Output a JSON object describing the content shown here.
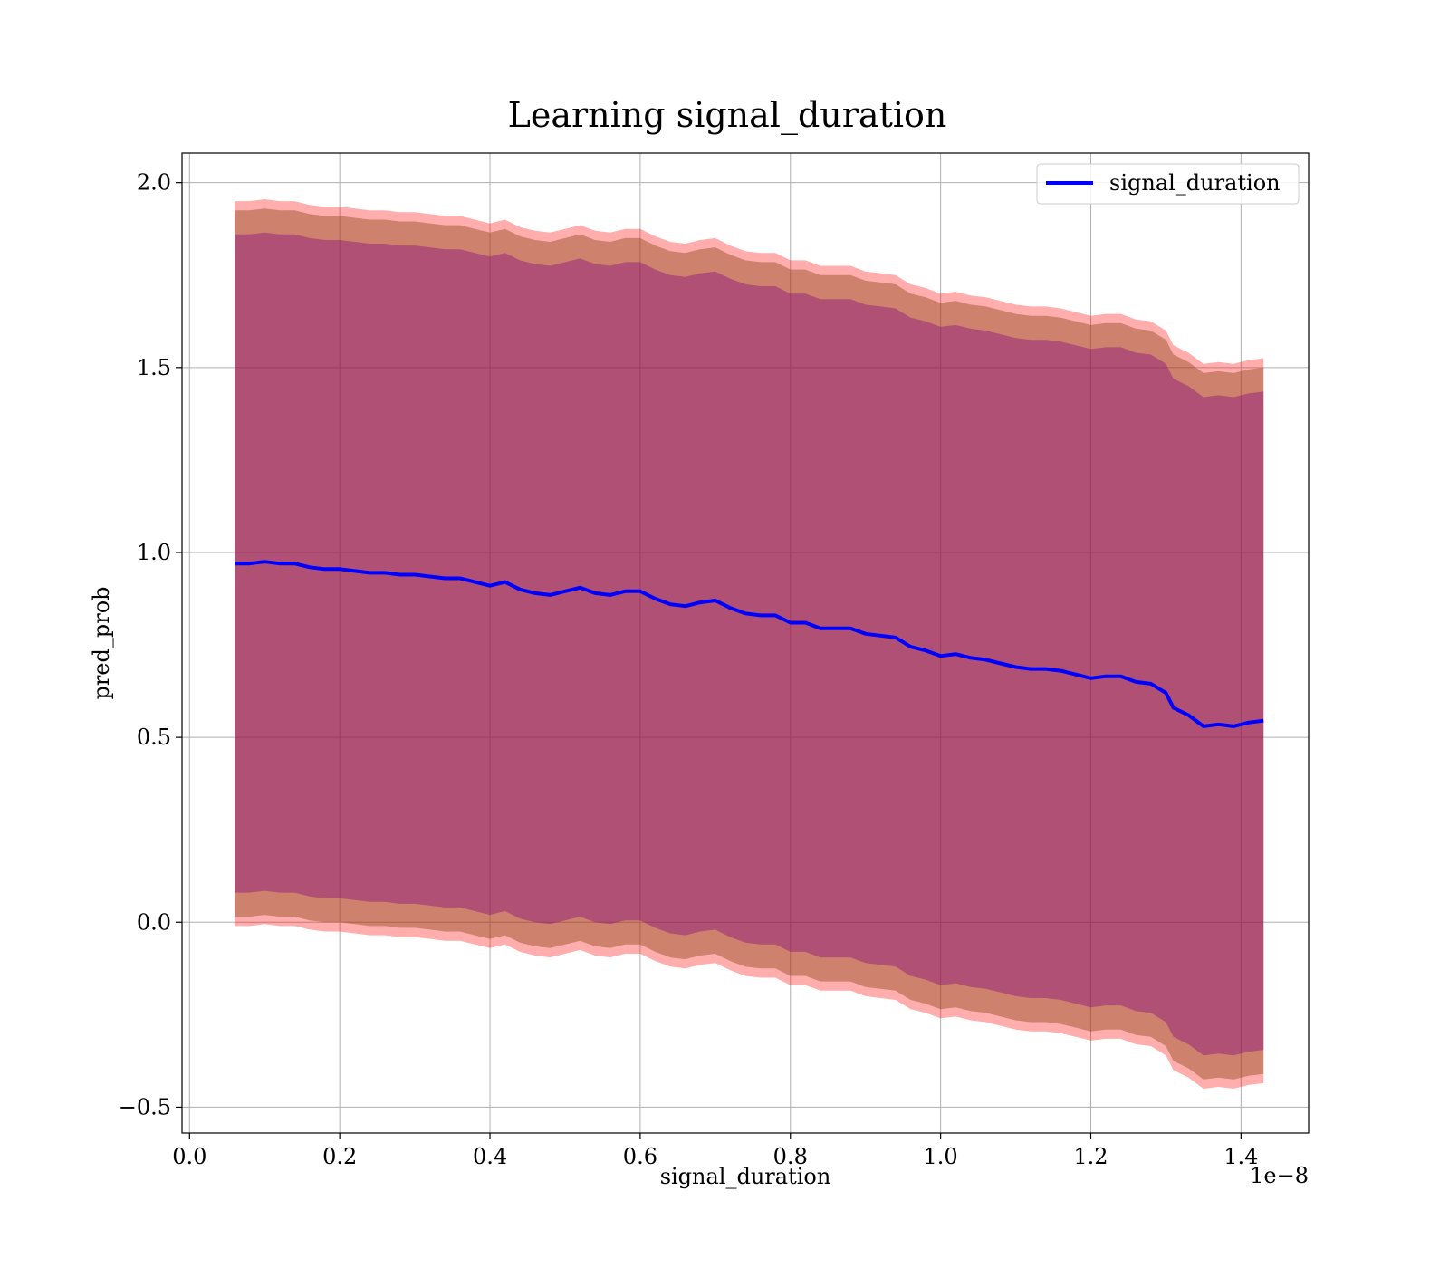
{
  "chart_data": {
    "type": "line",
    "title": "Learning signal_duration",
    "xlabel": "signal_duration",
    "ylabel": "pred_prob",
    "x_scale_label": "1e−8",
    "xlim": [
      -0.01,
      1.49
    ],
    "ylim": [
      -0.57,
      2.08
    ],
    "x_ticks": [
      0.0,
      0.2,
      0.4,
      0.6,
      0.8,
      1.0,
      1.2,
      1.4
    ],
    "x_tick_labels": [
      "0.0",
      "0.2",
      "0.4",
      "0.6",
      "0.8",
      "1.0",
      "1.2",
      "1.4"
    ],
    "y_ticks": [
      -0.5,
      0.0,
      0.5,
      1.0,
      1.5,
      2.0
    ],
    "y_tick_labels": [
      "−0.5",
      "0.0",
      "0.5",
      "1.0",
      "1.5",
      "2.0"
    ],
    "grid": true,
    "legend": {
      "position": "top-right",
      "entries": [
        "signal_duration"
      ]
    },
    "colors": {
      "line": "#0000ff",
      "band_outer": "#ff0000",
      "band_inner": "#8b4513",
      "band_core": "#800080"
    },
    "x": [
      0.06,
      0.08,
      0.1,
      0.12,
      0.14,
      0.16,
      0.18,
      0.2,
      0.22,
      0.24,
      0.26,
      0.28,
      0.3,
      0.32,
      0.34,
      0.36,
      0.38,
      0.4,
      0.42,
      0.44,
      0.46,
      0.48,
      0.5,
      0.52,
      0.54,
      0.56,
      0.58,
      0.6,
      0.62,
      0.64,
      0.66,
      0.68,
      0.7,
      0.72,
      0.74,
      0.76,
      0.78,
      0.8,
      0.82,
      0.84,
      0.86,
      0.88,
      0.9,
      0.92,
      0.94,
      0.96,
      0.98,
      1.0,
      1.02,
      1.04,
      1.06,
      1.08,
      1.1,
      1.12,
      1.14,
      1.16,
      1.18,
      1.2,
      1.22,
      1.24,
      1.26,
      1.28,
      1.3,
      1.31,
      1.33,
      1.35,
      1.37,
      1.39,
      1.41,
      1.43
    ],
    "series": [
      {
        "name": "signal_duration",
        "values": [
          0.97,
          0.97,
          0.975,
          0.97,
          0.97,
          0.96,
          0.955,
          0.955,
          0.95,
          0.945,
          0.945,
          0.94,
          0.94,
          0.935,
          0.93,
          0.93,
          0.92,
          0.91,
          0.92,
          0.9,
          0.89,
          0.885,
          0.895,
          0.905,
          0.89,
          0.885,
          0.895,
          0.895,
          0.875,
          0.86,
          0.855,
          0.865,
          0.87,
          0.85,
          0.835,
          0.83,
          0.83,
          0.81,
          0.81,
          0.795,
          0.795,
          0.795,
          0.78,
          0.775,
          0.77,
          0.745,
          0.735,
          0.72,
          0.725,
          0.715,
          0.71,
          0.7,
          0.69,
          0.685,
          0.685,
          0.68,
          0.67,
          0.66,
          0.665,
          0.665,
          0.65,
          0.645,
          0.62,
          0.58,
          0.56,
          0.53,
          0.535,
          0.53,
          0.54,
          0.545
        ]
      }
    ],
    "bands": [
      {
        "name": "outer",
        "lower_offset": -0.98,
        "upper_offset": 0.98
      },
      {
        "name": "inner",
        "lower_offset": -0.955,
        "upper_offset": 0.955
      },
      {
        "name": "core",
        "lower_offset": -0.89,
        "upper_offset": 0.89
      }
    ]
  }
}
